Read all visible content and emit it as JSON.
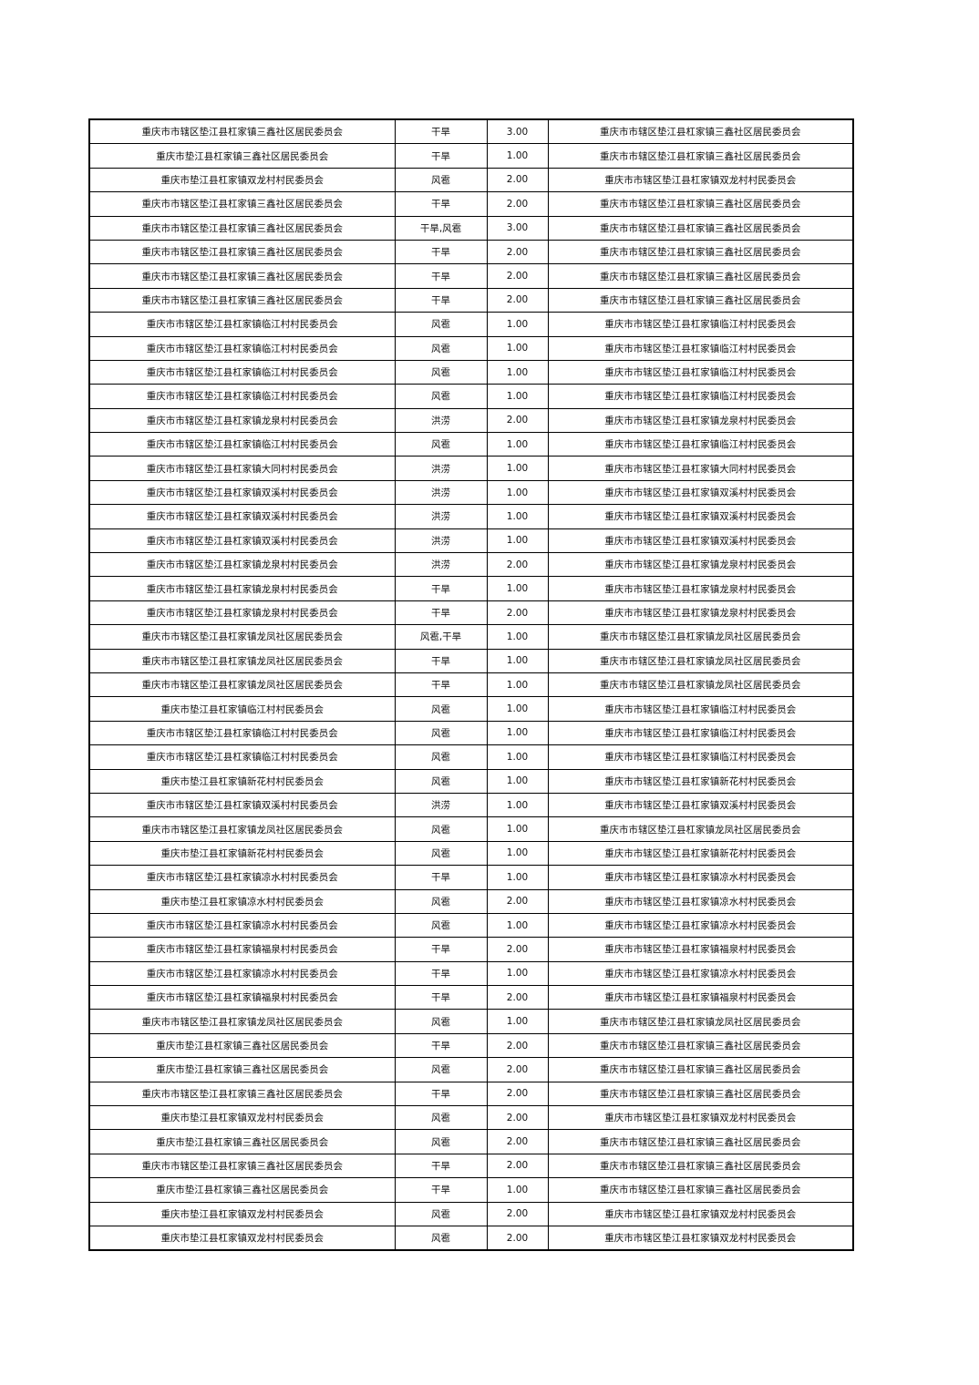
{
  "table": {
    "rows": [
      [
        "重庆市市辖区垫江县杠家镇三鑫社区居民委员会",
        "干旱",
        "3.00",
        "重庆市市辖区垫江县杠家镇三鑫社区居民委员会"
      ],
      [
        "重庆市垫江县杠家镇三鑫社区居民委员会",
        "干旱",
        "1.00",
        "重庆市市辖区垫江县杠家镇三鑫社区居民委员会"
      ],
      [
        "重庆市垫江县杠家镇双龙村村民委员会",
        "风雹",
        "2.00",
        "重庆市市辖区垫江县杠家镇双龙村村民委员会"
      ],
      [
        "重庆市市辖区垫江县杠家镇三鑫社区居民委员会",
        "干旱",
        "2.00",
        "重庆市市辖区垫江县杠家镇三鑫社区居民委员会"
      ],
      [
        "重庆市市辖区垫江县杠家镇三鑫社区居民委员会",
        "干旱,风雹",
        "3.00",
        "重庆市市辖区垫江县杠家镇三鑫社区居民委员会"
      ],
      [
        "重庆市市辖区垫江县杠家镇三鑫社区居民委员会",
        "干旱",
        "2.00",
        "重庆市市辖区垫江县杠家镇三鑫社区居民委员会"
      ],
      [
        "重庆市市辖区垫江县杠家镇三鑫社区居民委员会",
        "干旱",
        "2.00",
        "重庆市市辖区垫江县杠家镇三鑫社区居民委员会"
      ],
      [
        "重庆市市辖区垫江县杠家镇三鑫社区居民委员会",
        "干旱",
        "2.00",
        "重庆市市辖区垫江县杠家镇三鑫社区居民委员会"
      ],
      [
        "重庆市市辖区垫江县杠家镇临江村村民委员会",
        "风雹",
        "1.00",
        "重庆市市辖区垫江县杠家镇临江村村民委员会"
      ],
      [
        "重庆市市辖区垫江县杠家镇临江村村民委员会",
        "风雹",
        "1.00",
        "重庆市市辖区垫江县杠家镇临江村村民委员会"
      ],
      [
        "重庆市市辖区垫江县杠家镇临江村村民委员会",
        "风雹",
        "1.00",
        "重庆市市辖区垫江县杠家镇临江村村民委员会"
      ],
      [
        "重庆市市辖区垫江县杠家镇临江村村民委员会",
        "风雹",
        "1.00",
        "重庆市市辖区垫江县杠家镇临江村村民委员会"
      ],
      [
        "重庆市市辖区垫江县杠家镇龙泉村村民委员会",
        "洪涝",
        "2.00",
        "重庆市市辖区垫江县杠家镇龙泉村村民委员会"
      ],
      [
        "重庆市市辖区垫江县杠家镇临江村村民委员会",
        "风雹",
        "1.00",
        "重庆市市辖区垫江县杠家镇临江村村民委员会"
      ],
      [
        "重庆市市辖区垫江县杠家镇大同村村民委员会",
        "洪涝",
        "1.00",
        "重庆市市辖区垫江县杠家镇大同村村民委员会"
      ],
      [
        "重庆市市辖区垫江县杠家镇双溪村村民委员会",
        "洪涝",
        "1.00",
        "重庆市市辖区垫江县杠家镇双溪村村民委员会"
      ],
      [
        "重庆市市辖区垫江县杠家镇双溪村村民委员会",
        "洪涝",
        "1.00",
        "重庆市市辖区垫江县杠家镇双溪村村民委员会"
      ],
      [
        "重庆市市辖区垫江县杠家镇双溪村村民委员会",
        "洪涝",
        "1.00",
        "重庆市市辖区垫江县杠家镇双溪村村民委员会"
      ],
      [
        "重庆市市辖区垫江县杠家镇龙泉村村民委员会",
        "洪涝",
        "2.00",
        "重庆市市辖区垫江县杠家镇龙泉村村民委员会"
      ],
      [
        "重庆市市辖区垫江县杠家镇龙泉村村民委员会",
        "干旱",
        "1.00",
        "重庆市市辖区垫江县杠家镇龙泉村村民委员会"
      ],
      [
        "重庆市市辖区垫江县杠家镇龙泉村村民委员会",
        "干旱",
        "2.00",
        "重庆市市辖区垫江县杠家镇龙泉村村民委员会"
      ],
      [
        "重庆市市辖区垫江县杠家镇龙凤社区居民委员会",
        "风雹,干旱",
        "1.00",
        "重庆市市辖区垫江县杠家镇龙凤社区居民委员会"
      ],
      [
        "重庆市市辖区垫江县杠家镇龙凤社区居民委员会",
        "干旱",
        "1.00",
        "重庆市市辖区垫江县杠家镇龙凤社区居民委员会"
      ],
      [
        "重庆市市辖区垫江县杠家镇龙凤社区居民委员会",
        "干旱",
        "1.00",
        "重庆市市辖区垫江县杠家镇龙凤社区居民委员会"
      ],
      [
        "重庆市垫江县杠家镇临江村村民委员会",
        "风雹",
        "1.00",
        "重庆市市辖区垫江县杠家镇临江村村民委员会"
      ],
      [
        "重庆市市辖区垫江县杠家镇临江村村民委员会",
        "风雹",
        "1.00",
        "重庆市市辖区垫江县杠家镇临江村村民委员会"
      ],
      [
        "重庆市市辖区垫江县杠家镇临江村村民委员会",
        "风雹",
        "1.00",
        "重庆市市辖区垫江县杠家镇临江村村民委员会"
      ],
      [
        "重庆市垫江县杠家镇新花村村民委员会",
        "风雹",
        "1.00",
        "重庆市市辖区垫江县杠家镇新花村村民委员会"
      ],
      [
        "重庆市市辖区垫江县杠家镇双溪村村民委员会",
        "洪涝",
        "1.00",
        "重庆市市辖区垫江县杠家镇双溪村村民委员会"
      ],
      [
        "重庆市市辖区垫江县杠家镇龙凤社区居民委员会",
        "风雹",
        "1.00",
        "重庆市市辖区垫江县杠家镇龙凤社区居民委员会"
      ],
      [
        "重庆市垫江县杠家镇新花村村民委员会",
        "风雹",
        "1.00",
        "重庆市市辖区垫江县杠家镇新花村村民委员会"
      ],
      [
        "重庆市市辖区垫江县杠家镇凉水村村民委员会",
        "干旱",
        "1.00",
        "重庆市市辖区垫江县杠家镇凉水村村民委员会"
      ],
      [
        "重庆市垫江县杠家镇凉水村村民委员会",
        "风雹",
        "2.00",
        "重庆市市辖区垫江县杠家镇凉水村村民委员会"
      ],
      [
        "重庆市市辖区垫江县杠家镇凉水村村民委员会",
        "风雹",
        "1.00",
        "重庆市市辖区垫江县杠家镇凉水村村民委员会"
      ],
      [
        "重庆市市辖区垫江县杠家镇福泉村村民委员会",
        "干旱",
        "2.00",
        "重庆市市辖区垫江县杠家镇福泉村村民委员会"
      ],
      [
        "重庆市市辖区垫江县杠家镇凉水村村民委员会",
        "干旱",
        "1.00",
        "重庆市市辖区垫江县杠家镇凉水村村民委员会"
      ],
      [
        "重庆市市辖区垫江县杠家镇福泉村村民委员会",
        "干旱",
        "2.00",
        "重庆市市辖区垫江县杠家镇福泉村村民委员会"
      ],
      [
        "重庆市市辖区垫江县杠家镇龙凤社区居民委员会",
        "风雹",
        "1.00",
        "重庆市市辖区垫江县杠家镇龙凤社区居民委员会"
      ],
      [
        "重庆市垫江县杠家镇三鑫社区居民委员会",
        "干旱",
        "2.00",
        "重庆市市辖区垫江县杠家镇三鑫社区居民委员会"
      ],
      [
        "重庆市垫江县杠家镇三鑫社区居民委员会",
        "风雹",
        "2.00",
        "重庆市市辖区垫江县杠家镇三鑫社区居民委员会"
      ],
      [
        "重庆市市辖区垫江县杠家镇三鑫社区居民委员会",
        "干旱",
        "2.00",
        "重庆市市辖区垫江县杠家镇三鑫社区居民委员会"
      ],
      [
        "重庆市垫江县杠家镇双龙村村民委员会",
        "风雹",
        "2.00",
        "重庆市市辖区垫江县杠家镇双龙村村民委员会"
      ],
      [
        "重庆市垫江县杠家镇三鑫社区居民委员会",
        "风雹",
        "2.00",
        "重庆市市辖区垫江县杠家镇三鑫社区居民委员会"
      ],
      [
        "重庆市市辖区垫江县杠家镇三鑫社区居民委员会",
        "干旱",
        "2.00",
        "重庆市市辖区垫江县杠家镇三鑫社区居民委员会"
      ],
      [
        "重庆市垫江县杠家镇三鑫社区居民委员会",
        "干旱",
        "1.00",
        "重庆市市辖区垫江县杠家镇三鑫社区居民委员会"
      ],
      [
        "重庆市垫江县杠家镇双龙村村民委员会",
        "风雹",
        "2.00",
        "重庆市市辖区垫江县杠家镇双龙村村民委员会"
      ],
      [
        "重庆市垫江县杠家镇双龙村村民委员会",
        "风雹",
        "2.00",
        "重庆市市辖区垫江县杠家镇双龙村村民委员会"
      ]
    ]
  }
}
